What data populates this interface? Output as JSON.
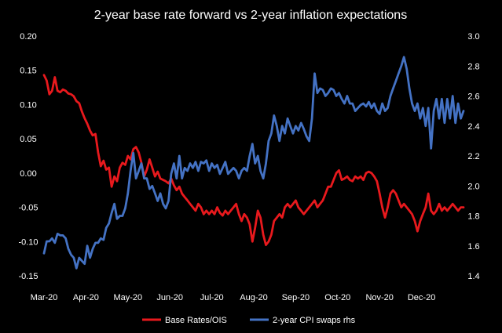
{
  "chart_data": {
    "type": "line",
    "title": "2-year base rate forward vs 2-year inflation expectations",
    "x_ticks": [
      "Mar-20",
      "Apr-20",
      "May-20",
      "Jun-20",
      "Jul-20",
      "Aug-20",
      "Sep-20",
      "Oct-20",
      "Nov-20",
      "Dec-20"
    ],
    "y_left": {
      "ylim": [
        -0.15,
        0.2
      ],
      "ticks": [
        "-0.15",
        "-0.10",
        "-0.05",
        "0.00",
        "0.05",
        "0.10",
        "0.15",
        "0.20"
      ]
    },
    "y_right": {
      "ylim": [
        1.4,
        3.0
      ],
      "ticks": [
        "1.4",
        "1.6",
        "1.8",
        "2.0",
        "2.2",
        "2.4",
        "2.6",
        "2.8",
        "3.0"
      ]
    },
    "legend_position": "bottom",
    "grid": false,
    "series": [
      {
        "name": "Base Rates/OIS",
        "axis": "left",
        "color": "#e8191d",
        "points": [
          [
            0.0,
            0.143
          ],
          [
            0.2,
            0.135
          ],
          [
            0.4,
            0.115
          ],
          [
            0.6,
            0.12
          ],
          [
            0.8,
            0.14
          ],
          [
            1.0,
            0.12
          ],
          [
            1.2,
            0.118
          ],
          [
            1.4,
            0.122
          ],
          [
            1.6,
            0.12
          ],
          [
            1.8,
            0.116
          ],
          [
            2.0,
            0.115
          ],
          [
            2.2,
            0.112
          ],
          [
            2.4,
            0.105
          ],
          [
            2.6,
            0.102
          ],
          [
            2.8,
            0.09
          ],
          [
            3.0,
            0.08
          ],
          [
            3.2,
            0.072
          ],
          [
            3.4,
            0.062
          ],
          [
            3.6,
            0.055
          ],
          [
            3.8,
            0.057
          ],
          [
            4.0,
            0.03
          ],
          [
            4.2,
            0.01
          ],
          [
            4.4,
            0.018
          ],
          [
            4.6,
            0.005
          ],
          [
            4.8,
            0.008
          ],
          [
            5.0,
            -0.02
          ],
          [
            5.2,
            -0.005
          ],
          [
            5.4,
            -0.012
          ],
          [
            5.6,
            0.008
          ],
          [
            5.8,
            0.015
          ],
          [
            6.0,
            0.012
          ],
          [
            6.2,
            0.025
          ],
          [
            6.4,
            0.02
          ],
          [
            6.6,
            0.035
          ],
          [
            6.8,
            0.038
          ],
          [
            7.0,
            0.03
          ],
          [
            7.2,
            0.015
          ],
          [
            7.4,
            -0.005
          ],
          [
            7.6,
            0.005
          ],
          [
            7.8,
            0.02
          ],
          [
            8.0,
            0.008
          ],
          [
            8.2,
            -0.005
          ],
          [
            8.4,
            0.002
          ],
          [
            8.6,
            -0.008
          ],
          [
            8.8,
            -0.01
          ],
          [
            9.0,
            -0.012
          ],
          [
            9.2,
            -0.015
          ],
          [
            9.4,
            -0.008
          ],
          [
            9.6,
            -0.018
          ],
          [
            9.8,
            -0.025
          ],
          [
            10.0,
            -0.02
          ],
          [
            10.2,
            -0.03
          ],
          [
            10.4,
            -0.035
          ],
          [
            10.6,
            -0.04
          ],
          [
            10.8,
            -0.045
          ],
          [
            11.0,
            -0.05
          ],
          [
            11.2,
            -0.055
          ],
          [
            11.4,
            -0.045
          ],
          [
            11.6,
            -0.05
          ],
          [
            11.8,
            -0.06
          ],
          [
            12.0,
            -0.055
          ],
          [
            12.2,
            -0.06
          ],
          [
            12.4,
            -0.055
          ],
          [
            12.6,
            -0.06
          ],
          [
            12.8,
            -0.05
          ],
          [
            13.0,
            -0.058
          ],
          [
            13.2,
            -0.062
          ],
          [
            13.4,
            -0.055
          ],
          [
            13.6,
            -0.06
          ],
          [
            13.8,
            -0.055
          ],
          [
            14.0,
            -0.05
          ],
          [
            14.2,
            -0.045
          ],
          [
            14.4,
            -0.06
          ],
          [
            14.6,
            -0.07
          ],
          [
            14.8,
            -0.06
          ],
          [
            15.0,
            -0.065
          ],
          [
            15.2,
            -0.075
          ],
          [
            15.4,
            -0.1
          ],
          [
            15.6,
            -0.08
          ],
          [
            15.8,
            -0.055
          ],
          [
            16.0,
            -0.065
          ],
          [
            16.2,
            -0.09
          ],
          [
            16.4,
            -0.105
          ],
          [
            16.6,
            -0.1
          ],
          [
            16.8,
            -0.09
          ],
          [
            17.0,
            -0.07
          ],
          [
            17.2,
            -0.065
          ],
          [
            17.4,
            -0.06
          ],
          [
            17.6,
            -0.065
          ],
          [
            17.8,
            -0.05
          ],
          [
            18.0,
            -0.045
          ],
          [
            18.2,
            -0.05
          ],
          [
            18.4,
            -0.045
          ],
          [
            18.6,
            -0.04
          ],
          [
            18.8,
            -0.05
          ],
          [
            19.0,
            -0.055
          ],
          [
            19.2,
            -0.06
          ],
          [
            19.4,
            -0.055
          ],
          [
            19.6,
            -0.05
          ],
          [
            19.8,
            -0.045
          ],
          [
            20.0,
            -0.04
          ],
          [
            20.2,
            -0.05
          ],
          [
            20.4,
            -0.045
          ],
          [
            20.6,
            -0.04
          ],
          [
            20.8,
            -0.03
          ],
          [
            21.0,
            -0.02
          ],
          [
            21.2,
            -0.02
          ],
          [
            21.4,
            -0.01
          ],
          [
            21.6,
            0.0
          ],
          [
            21.8,
            0.004
          ],
          [
            22.0,
            -0.01
          ],
          [
            22.2,
            -0.008
          ],
          [
            22.4,
            -0.005
          ],
          [
            22.6,
            -0.01
          ],
          [
            22.8,
            -0.012
          ],
          [
            23.0,
            -0.005
          ],
          [
            23.2,
            -0.008
          ],
          [
            23.4,
            -0.005
          ],
          [
            23.6,
            -0.01
          ],
          [
            23.8,
            0.0
          ],
          [
            24.0,
            0.002
          ],
          [
            24.2,
            0.0
          ],
          [
            24.4,
            -0.005
          ],
          [
            24.6,
            -0.012
          ],
          [
            24.8,
            -0.03
          ],
          [
            25.0,
            -0.05
          ],
          [
            25.2,
            -0.065
          ],
          [
            25.4,
            -0.05
          ],
          [
            25.6,
            -0.03
          ],
          [
            25.8,
            -0.025
          ],
          [
            26.0,
            -0.03
          ],
          [
            26.2,
            -0.04
          ],
          [
            26.4,
            -0.05
          ],
          [
            26.6,
            -0.045
          ],
          [
            26.8,
            -0.05
          ],
          [
            27.0,
            -0.055
          ],
          [
            27.2,
            -0.06
          ],
          [
            27.4,
            -0.07
          ],
          [
            27.6,
            -0.085
          ],
          [
            27.8,
            -0.07
          ],
          [
            28.0,
            -0.06
          ],
          [
            28.2,
            -0.05
          ],
          [
            28.4,
            -0.03
          ],
          [
            28.6,
            -0.055
          ],
          [
            28.8,
            -0.06
          ],
          [
            29.0,
            -0.055
          ],
          [
            29.2,
            -0.045
          ],
          [
            29.4,
            -0.055
          ],
          [
            29.6,
            -0.05
          ],
          [
            29.8,
            -0.055
          ],
          [
            30.0,
            -0.05
          ],
          [
            30.2,
            -0.045
          ],
          [
            30.4,
            -0.05
          ],
          [
            30.6,
            -0.055
          ],
          [
            30.8,
            -0.05
          ],
          [
            31.0,
            -0.05
          ]
        ]
      },
      {
        "name": "2-year CPI swaps rhs",
        "axis": "right",
        "color": "#4472c4",
        "points": [
          [
            0.0,
            1.55
          ],
          [
            0.2,
            1.63
          ],
          [
            0.4,
            1.63
          ],
          [
            0.6,
            1.65
          ],
          [
            0.8,
            1.62
          ],
          [
            1.0,
            1.68
          ],
          [
            1.2,
            1.67
          ],
          [
            1.4,
            1.67
          ],
          [
            1.6,
            1.65
          ],
          [
            1.8,
            1.58
          ],
          [
            2.0,
            1.54
          ],
          [
            2.2,
            1.52
          ],
          [
            2.4,
            1.45
          ],
          [
            2.6,
            1.52
          ],
          [
            2.8,
            1.5
          ],
          [
            3.0,
            1.48
          ],
          [
            3.2,
            1.6
          ],
          [
            3.4,
            1.52
          ],
          [
            3.6,
            1.58
          ],
          [
            3.8,
            1.62
          ],
          [
            4.0,
            1.62
          ],
          [
            4.2,
            1.65
          ],
          [
            4.4,
            1.64
          ],
          [
            4.6,
            1.72
          ],
          [
            4.8,
            1.75
          ],
          [
            5.0,
            1.82
          ],
          [
            5.2,
            1.88
          ],
          [
            5.4,
            1.78
          ],
          [
            5.6,
            1.8
          ],
          [
            5.8,
            1.8
          ],
          [
            6.0,
            1.85
          ],
          [
            6.2,
            1.95
          ],
          [
            6.4,
            2.1
          ],
          [
            6.6,
            2.22
          ],
          [
            6.8,
            2.05
          ],
          [
            7.0,
            2.1
          ],
          [
            7.2,
            2.15
          ],
          [
            7.4,
            2.05
          ],
          [
            7.6,
            2.05
          ],
          [
            7.8,
            1.98
          ],
          [
            8.0,
            2.0
          ],
          [
            8.2,
            1.95
          ],
          [
            8.4,
            1.9
          ],
          [
            8.6,
            1.95
          ],
          [
            8.8,
            1.88
          ],
          [
            9.0,
            1.85
          ],
          [
            9.2,
            1.9
          ],
          [
            9.4,
            2.08
          ],
          [
            9.6,
            2.15
          ],
          [
            9.8,
            2.05
          ],
          [
            10.0,
            2.2
          ],
          [
            10.2,
            2.05
          ],
          [
            10.4,
            2.12
          ],
          [
            10.6,
            2.1
          ],
          [
            10.8,
            2.15
          ],
          [
            11.0,
            2.12
          ],
          [
            11.2,
            2.16
          ],
          [
            11.4,
            2.1
          ],
          [
            11.6,
            2.16
          ],
          [
            11.8,
            2.15
          ],
          [
            12.0,
            2.17
          ],
          [
            12.2,
            2.1
          ],
          [
            12.4,
            2.15
          ],
          [
            12.6,
            2.12
          ],
          [
            12.8,
            2.14
          ],
          [
            13.0,
            2.08
          ],
          [
            13.2,
            2.12
          ],
          [
            13.4,
            2.16
          ],
          [
            13.6,
            2.08
          ],
          [
            13.8,
            2.1
          ],
          [
            14.0,
            2.12
          ],
          [
            14.2,
            2.1
          ],
          [
            14.4,
            2.05
          ],
          [
            14.6,
            2.1
          ],
          [
            14.8,
            2.12
          ],
          [
            15.0,
            2.1
          ],
          [
            15.2,
            2.2
          ],
          [
            15.4,
            2.28
          ],
          [
            15.6,
            2.15
          ],
          [
            15.8,
            2.2
          ],
          [
            16.0,
            2.1
          ],
          [
            16.2,
            2.05
          ],
          [
            16.4,
            2.15
          ],
          [
            16.6,
            2.3
          ],
          [
            16.8,
            2.35
          ],
          [
            17.0,
            2.47
          ],
          [
            17.2,
            2.4
          ],
          [
            17.4,
            2.3
          ],
          [
            17.6,
            2.4
          ],
          [
            17.8,
            2.35
          ],
          [
            18.0,
            2.45
          ],
          [
            18.2,
            2.4
          ],
          [
            18.4,
            2.35
          ],
          [
            18.6,
            2.4
          ],
          [
            18.8,
            2.37
          ],
          [
            19.0,
            2.42
          ],
          [
            19.2,
            2.38
          ],
          [
            19.4,
            2.33
          ],
          [
            19.6,
            2.3
          ],
          [
            19.8,
            2.45
          ],
          [
            20.0,
            2.75
          ],
          [
            20.2,
            2.62
          ],
          [
            20.4,
            2.65
          ],
          [
            20.6,
            2.64
          ],
          [
            20.8,
            2.6
          ],
          [
            21.0,
            2.62
          ],
          [
            21.2,
            2.65
          ],
          [
            21.4,
            2.64
          ],
          [
            21.6,
            2.6
          ],
          [
            21.8,
            2.62
          ],
          [
            22.0,
            2.58
          ],
          [
            22.2,
            2.55
          ],
          [
            22.4,
            2.6
          ],
          [
            22.6,
            2.55
          ],
          [
            22.8,
            2.55
          ],
          [
            23.0,
            2.5
          ],
          [
            23.2,
            2.52
          ],
          [
            23.4,
            2.54
          ],
          [
            23.6,
            2.55
          ],
          [
            23.8,
            2.53
          ],
          [
            24.0,
            2.56
          ],
          [
            24.2,
            2.52
          ],
          [
            24.4,
            2.55
          ],
          [
            24.6,
            2.5
          ],
          [
            24.8,
            2.48
          ],
          [
            25.0,
            2.55
          ],
          [
            25.2,
            2.5
          ],
          [
            25.4,
            2.52
          ],
          [
            25.6,
            2.6
          ],
          [
            25.8,
            2.65
          ],
          [
            26.0,
            2.7
          ],
          [
            26.2,
            2.75
          ],
          [
            26.4,
            2.8
          ],
          [
            26.6,
            2.86
          ],
          [
            26.8,
            2.78
          ],
          [
            27.0,
            2.65
          ],
          [
            27.2,
            2.55
          ],
          [
            27.4,
            2.5
          ],
          [
            27.6,
            2.55
          ],
          [
            27.8,
            2.45
          ],
          [
            28.0,
            2.52
          ],
          [
            28.2,
            2.4
          ],
          [
            28.4,
            2.52
          ],
          [
            28.6,
            2.25
          ],
          [
            28.8,
            2.5
          ],
          [
            29.0,
            2.58
          ],
          [
            29.2,
            2.45
          ],
          [
            29.4,
            2.58
          ],
          [
            29.6,
            2.42
          ],
          [
            29.8,
            2.58
          ],
          [
            30.0,
            2.45
          ],
          [
            30.2,
            2.6
          ],
          [
            30.4,
            2.42
          ],
          [
            30.6,
            2.55
          ],
          [
            30.8,
            2.45
          ],
          [
            31.0,
            2.5
          ]
        ]
      }
    ]
  }
}
